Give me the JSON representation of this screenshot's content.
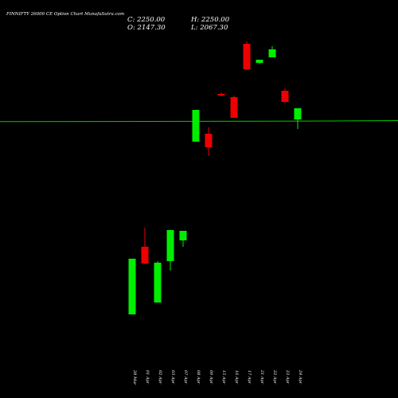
{
  "header": {
    "title": "FINNIFTY 26000  CE Option  Chart MunafaSutra.com"
  },
  "ohlc": {
    "c_label": "C: 2250.00",
    "h_label": "H: 2250.00",
    "o_label": "O: 2147.30",
    "l_label": "L: 2067.30"
  },
  "colors": {
    "background": "#000000",
    "up": "#00ee00",
    "down": "#ee0000",
    "reference_line": "#00cc00",
    "text": "#ffffff"
  },
  "chart_data": {
    "type": "candlestick",
    "title": "FINNIFTY 26000  CE Option  Chart MunafaSutra.com",
    "x_labels": [
      "28 Mar",
      "01 Apr",
      "02 Apr",
      "03 Apr",
      "07 Apr",
      "08 Apr",
      "09 Apr",
      "15 Apr",
      "16 Apr",
      "17 Apr",
      "21 Apr",
      "22 Apr",
      "23 Apr",
      "24 Apr"
    ],
    "candles": [
      {
        "date": "28 Mar",
        "open": 55,
        "high": 125,
        "low": 55,
        "close": 125,
        "dir": "up"
      },
      {
        "date": "01 Apr",
        "open": 140,
        "high": 164,
        "low": 118,
        "close": 119,
        "dir": "down"
      },
      {
        "date": "02 Apr",
        "open": 70,
        "high": 122,
        "low": 70,
        "close": 120,
        "dir": "up"
      },
      {
        "date": "03 Apr",
        "open": 122,
        "high": 161,
        "low": 110,
        "close": 161,
        "dir": "up"
      },
      {
        "date": "07 Apr",
        "open": 148,
        "high": 160,
        "low": 140,
        "close": 160,
        "dir": "up"
      },
      {
        "date": "08 Apr",
        "open": 272,
        "high": 312,
        "low": 272,
        "close": 312,
        "dir": "up"
      },
      {
        "date": "09 Apr",
        "open": 282,
        "high": 290,
        "low": 254,
        "close": 265,
        "dir": "down"
      },
      {
        "date": "15 Apr",
        "open": 332,
        "high": 334,
        "low": 329,
        "close": 330,
        "dir": "down"
      },
      {
        "date": "16 Apr",
        "open": 328,
        "high": 330,
        "low": 302,
        "close": 302,
        "dir": "down"
      },
      {
        "date": "17 Apr",
        "open": 395,
        "high": 398,
        "low": 362,
        "close": 363,
        "dir": "down"
      },
      {
        "date": "21 Apr",
        "open": 371,
        "high": 375,
        "low": 370,
        "close": 375,
        "dir": "up"
      },
      {
        "date": "22 Apr",
        "open": 378,
        "high": 392,
        "low": 378,
        "close": 388,
        "dir": "up"
      },
      {
        "date": "23 Apr",
        "open": 336,
        "high": 339,
        "low": 320,
        "close": 322,
        "dir": "down"
      },
      {
        "date": "24 Apr",
        "open": 300,
        "high": 314,
        "low": 288,
        "close": 314,
        "dir": "up"
      }
    ],
    "reference_value": 2250,
    "ylim": [
      0,
      2300
    ],
    "grid": false,
    "legend": "none"
  }
}
